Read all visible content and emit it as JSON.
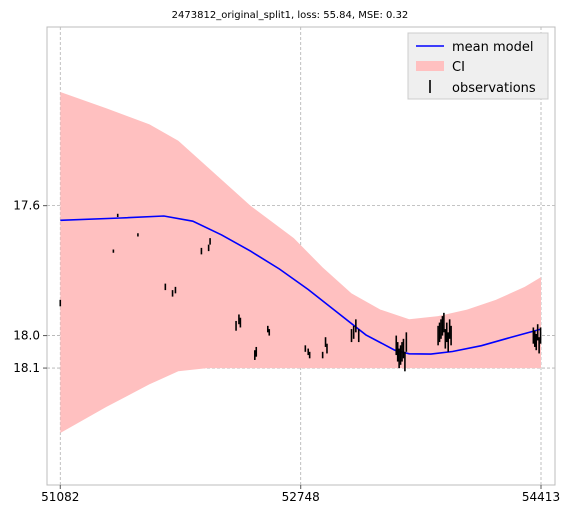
{
  "chart_data": {
    "type": "line",
    "title": "2473812_original_split1, loss: 55.84, MSE: 0.32",
    "xlabel": "",
    "ylabel": "",
    "x_ticks": [
      51082,
      52748,
      54413
    ],
    "y_ticks": [
      17.6,
      18.0,
      18.1
    ],
    "xlim": [
      50990,
      54510
    ],
    "ylim": [
      17.05,
      18.46
    ],
    "y_inverted": true,
    "grid": true,
    "legend_position": "top-right",
    "colors": {
      "mean": "#0000ff",
      "ci": "#ffc0c0",
      "obs": "#000000"
    },
    "series": [
      {
        "name": "mean model",
        "kind": "line",
        "x": [
          51082,
          51500,
          51800,
          52000,
          52200,
          52400,
          52600,
          52800,
          53000,
          53200,
          53400,
          53500,
          53650,
          53800,
          54000,
          54200,
          54413
        ],
        "y": [
          17.645,
          17.638,
          17.632,
          17.648,
          17.69,
          17.74,
          17.795,
          17.858,
          17.928,
          17.998,
          18.045,
          18.056,
          18.057,
          18.049,
          18.031,
          18.006,
          17.98
        ]
      },
      {
        "name": "CI",
        "kind": "band",
        "x": [
          51082,
          51400,
          51700,
          51900,
          52100,
          52400,
          52700,
          52900,
          53100,
          53300,
          53500,
          53700,
          53900,
          54100,
          54300,
          54413
        ],
        "upper": [
          18.3,
          18.22,
          18.15,
          18.11,
          18.1,
          18.1,
          18.1,
          18.1,
          18.1,
          18.1,
          18.1,
          18.1,
          18.1,
          18.1,
          18.1,
          18.1
        ],
        "lower": [
          17.25,
          17.3,
          17.35,
          17.4,
          17.48,
          17.6,
          17.7,
          17.79,
          17.87,
          17.92,
          17.95,
          17.94,
          17.92,
          17.89,
          17.85,
          17.82
        ]
      },
      {
        "name": "observations",
        "kind": "errorbar",
        "x": [
          51082,
          51450,
          51480,
          51620,
          51810,
          51860,
          51880,
          52060,
          52110,
          52120,
          52300,
          52320,
          52330,
          52430,
          52440,
          52520,
          52530,
          52780,
          52800,
          52810,
          52900,
          52920,
          52930,
          53100,
          53115,
          53130,
          53150,
          53410,
          53420,
          53430,
          53440,
          53450,
          53460,
          53470,
          53480,
          53700,
          53710,
          53720,
          53730,
          53740,
          53750,
          53760,
          53770,
          53780,
          53790,
          54360,
          54370,
          54380,
          54390,
          54400,
          54410
        ],
        "y": [
          17.9,
          17.74,
          17.63,
          17.69,
          17.85,
          17.87,
          17.86,
          17.74,
          17.73,
          17.71,
          17.97,
          17.95,
          17.96,
          18.06,
          18.05,
          17.98,
          17.99,
          18.04,
          18.05,
          18.06,
          18.06,
          18.02,
          18.04,
          18.0,
          17.99,
          17.97,
          18.0,
          18.03,
          18.05,
          18.07,
          18.06,
          18.05,
          18.04,
          18.08,
          18.02,
          18.0,
          17.99,
          17.98,
          17.97,
          17.96,
          18.01,
          17.99,
          18.02,
          17.98,
          18.0,
          18.0,
          18.01,
          18.02,
          17.99,
          18.03,
          18.0
        ],
        "err": [
          0.01,
          0.005,
          0.005,
          0.005,
          0.01,
          0.01,
          0.01,
          0.01,
          0.01,
          0.01,
          0.015,
          0.015,
          0.015,
          0.015,
          0.015,
          0.01,
          0.01,
          0.01,
          0.01,
          0.01,
          0.01,
          0.015,
          0.015,
          0.02,
          0.02,
          0.02,
          0.02,
          0.03,
          0.03,
          0.03,
          0.03,
          0.03,
          0.03,
          0.03,
          0.03,
          0.03,
          0.03,
          0.03,
          0.03,
          0.03,
          0.03,
          0.03,
          0.03,
          0.03,
          0.03,
          0.025,
          0.025,
          0.025,
          0.025,
          0.025,
          0.025
        ]
      }
    ],
    "legend": [
      "mean model",
      "CI",
      "observations"
    ]
  }
}
